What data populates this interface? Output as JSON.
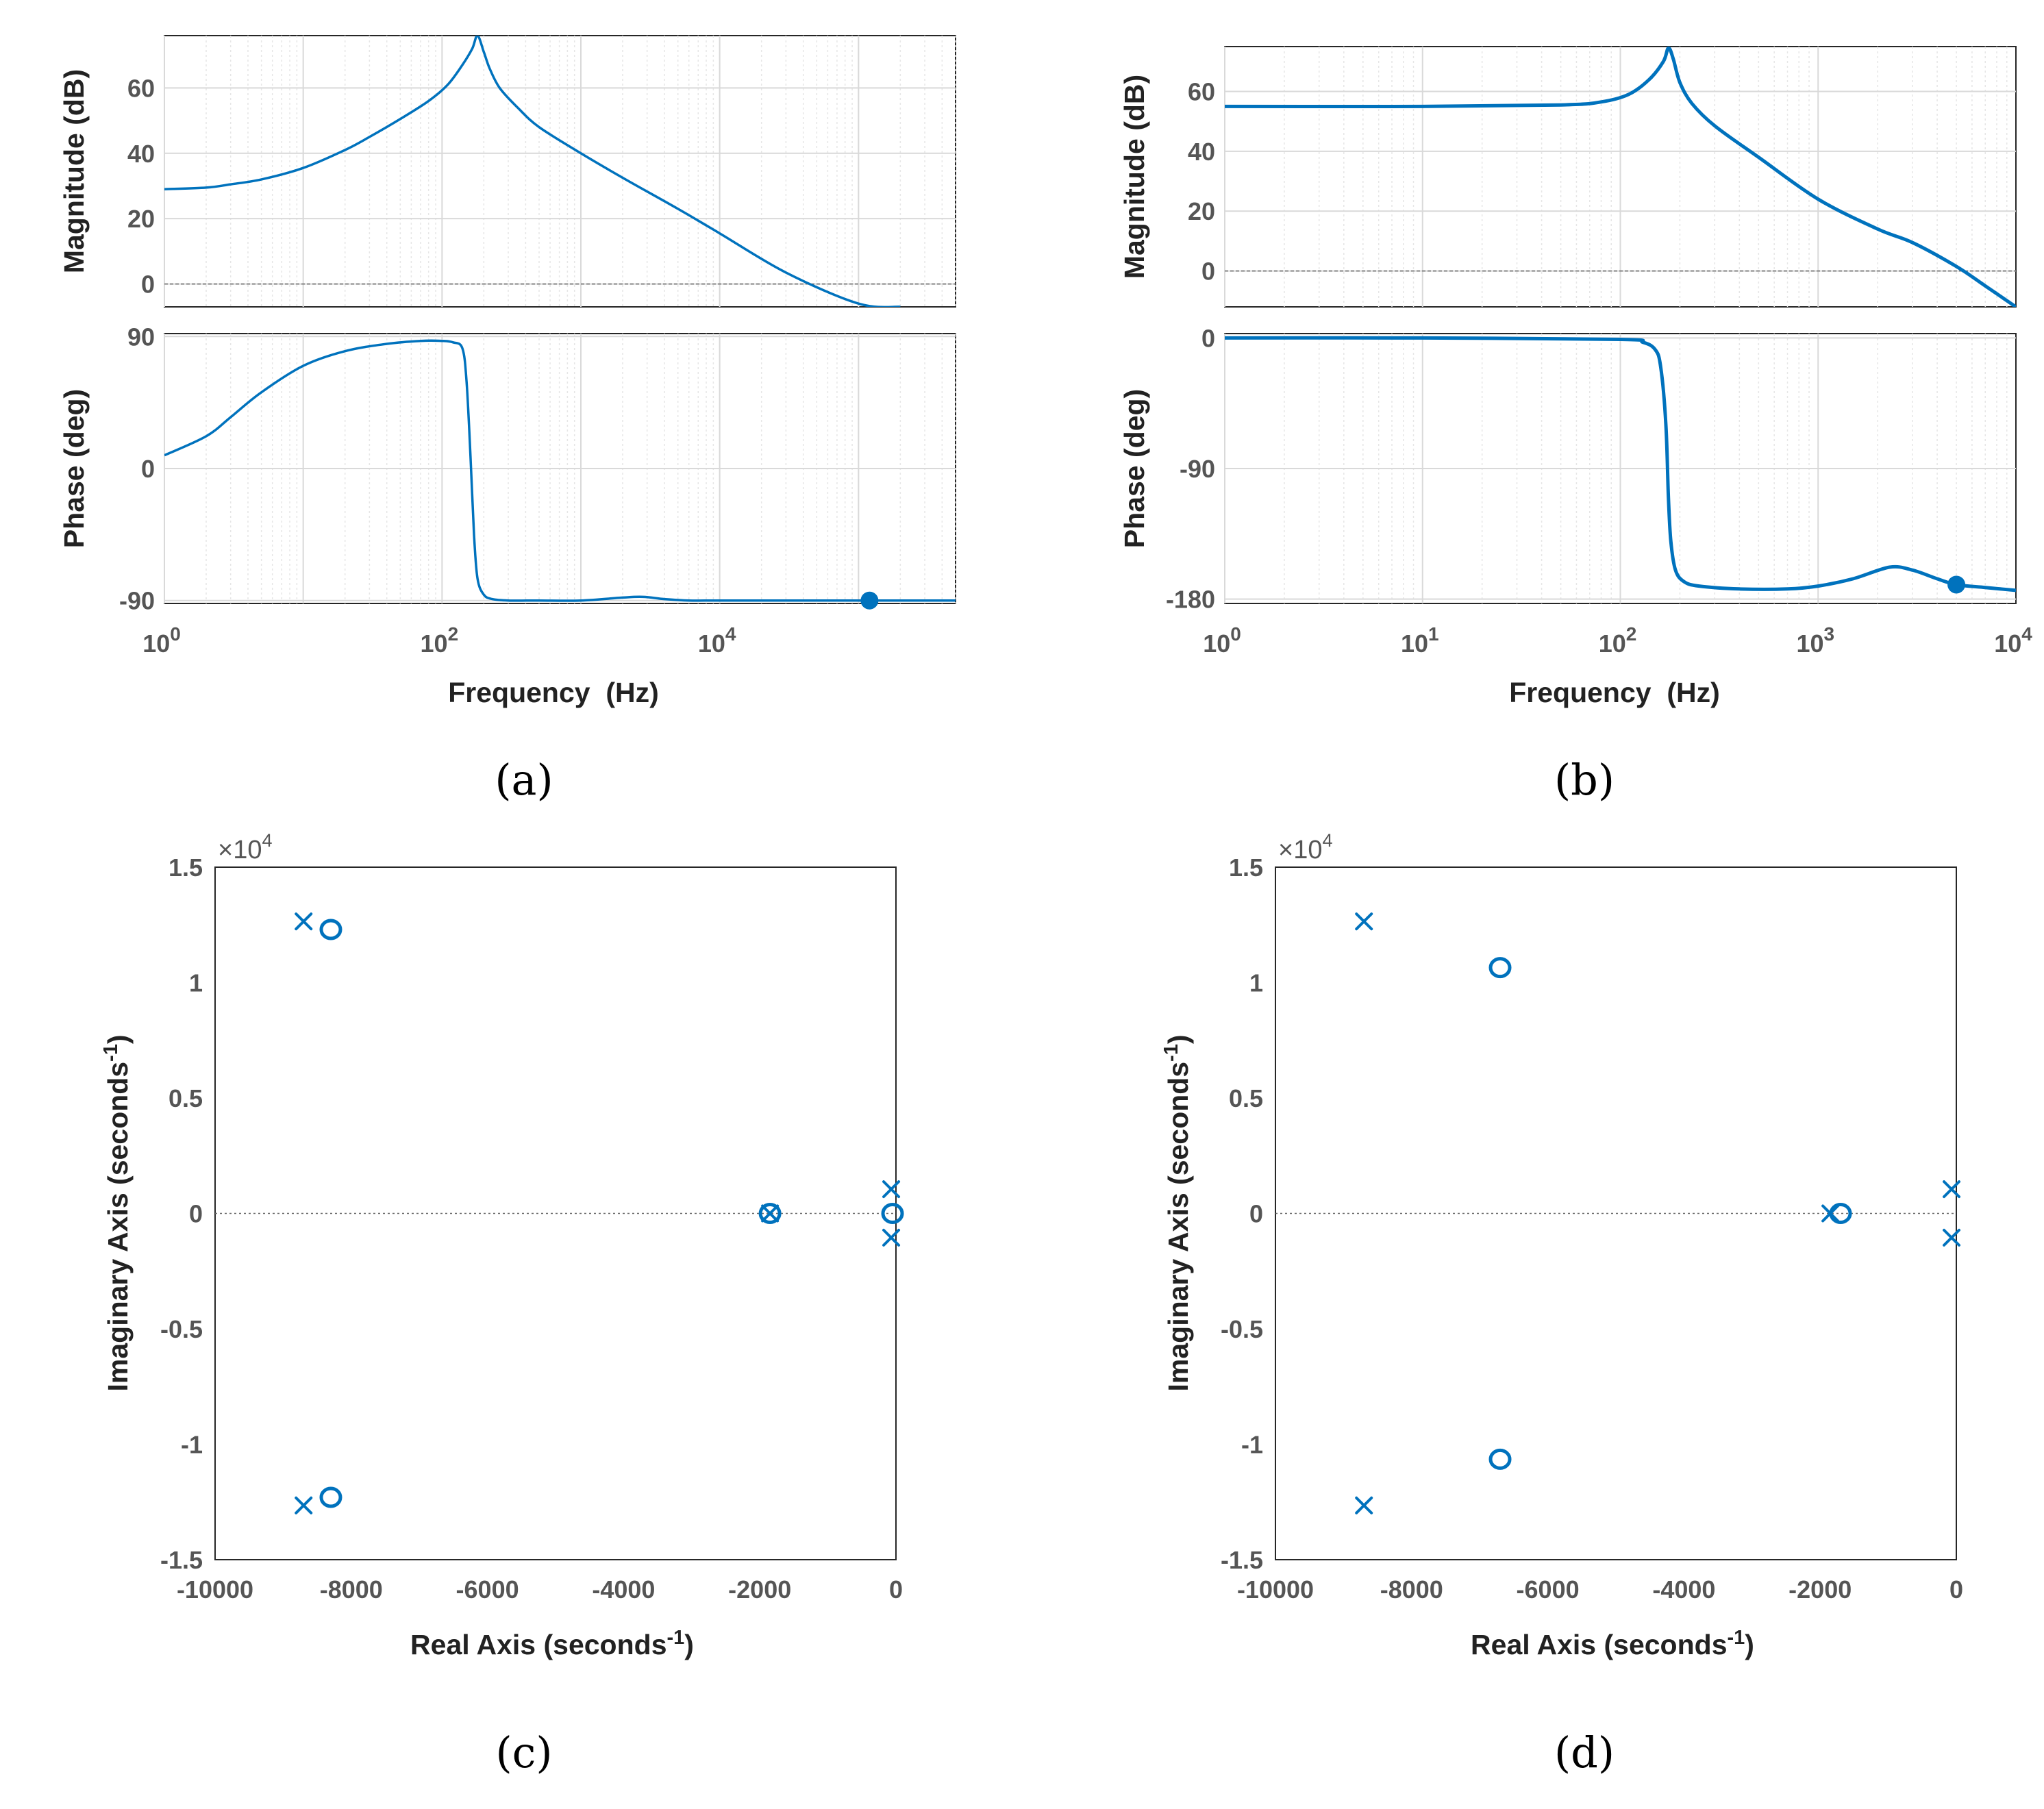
{
  "colors": {
    "line": "#0072BD",
    "grid_major": "#d9d9d9",
    "grid_minor": "#e6e6e6",
    "axis": "#262626",
    "tick_text": "#555555",
    "ref_line": "#666666"
  },
  "chart_data": [
    {
      "id": "a",
      "type": "line",
      "subtype": "bode",
      "caption": "(a)",
      "xlabel": "Frequency  (Hz)",
      "xscale": "log",
      "xlim": [
        1,
        500000
      ],
      "xticks": [
        {
          "value": 1,
          "base": "10",
          "exp": "0"
        },
        {
          "value": 100,
          "base": "10",
          "exp": "2"
        },
        {
          "value": 10000,
          "base": "10",
          "exp": "4"
        }
      ],
      "magnitude": {
        "ylabel": "Magnitude (dB)",
        "ylim": [
          -7,
          76
        ],
        "yticks": [
          0,
          20,
          40,
          60
        ],
        "ref_line": 0,
        "x": [
          1,
          2,
          3,
          5,
          10,
          20,
          30,
          50,
          80,
          110,
          140,
          165,
          180,
          200,
          220,
          260,
          350,
          500,
          1000,
          2000,
          5000,
          10000,
          30000,
          100000,
          200000
        ],
        "y": [
          29,
          29.5,
          30.5,
          32,
          35.5,
          41,
          45,
          50.5,
          56,
          61,
          67,
          72,
          76,
          71,
          66,
          60,
          54,
          48,
          40,
          32.5,
          23,
          15.5,
          3.5,
          -6,
          -7
        ]
      },
      "phase": {
        "ylabel": "Phase (deg)",
        "ylim": [
          -92,
          92
        ],
        "yticks": [
          -90,
          0,
          90
        ],
        "x": [
          1,
          2,
          3,
          5,
          10,
          20,
          40,
          70,
          100,
          120,
          140,
          150,
          160,
          170,
          180,
          200,
          230,
          300,
          500,
          1000,
          2000,
          2800,
          4000,
          6000,
          10000,
          30000,
          100000,
          500000
        ],
        "y": [
          9,
          22,
          35,
          52,
          70,
          80,
          85,
          87,
          87,
          86,
          82,
          60,
          10,
          -45,
          -75,
          -86,
          -89,
          -90,
          -90,
          -90,
          -88,
          -87.5,
          -89,
          -90,
          -90,
          -90,
          -90,
          -90
        ]
      },
      "marker_point": {
        "x": 120000,
        "phase": -90
      }
    },
    {
      "id": "b",
      "type": "line",
      "subtype": "bode",
      "caption": "(b)",
      "xlabel": "Frequency  (Hz)",
      "xscale": "log",
      "xlim": [
        1,
        10000
      ],
      "xticks": [
        {
          "value": 1,
          "base": "10",
          "exp": "0"
        },
        {
          "value": 10,
          "base": "10",
          "exp": "1"
        },
        {
          "value": 100,
          "base": "10",
          "exp": "2"
        },
        {
          "value": 1000,
          "base": "10",
          "exp": "3"
        },
        {
          "value": 10000,
          "base": "10",
          "exp": "4"
        }
      ],
      "magnitude": {
        "ylabel": "Magnitude (dB)",
        "ylim": [
          -12,
          75
        ],
        "yticks": [
          0,
          20,
          40,
          60
        ],
        "ref_line": 0,
        "x": [
          1,
          10,
          50,
          80,
          110,
          140,
          165,
          175,
          185,
          200,
          230,
          300,
          500,
          1000,
          2000,
          3000,
          5000,
          7000,
          10000
        ],
        "y": [
          55,
          55,
          55.5,
          56.5,
          59,
          64,
          70,
          74.5,
          71,
          63,
          56,
          48.5,
          38,
          24,
          14,
          9.5,
          1.5,
          -5,
          -12
        ]
      },
      "phase": {
        "ylabel": "Phase (deg)",
        "ylim": [
          -183,
          3
        ],
        "yticks": [
          -180,
          -90,
          0
        ],
        "x": [
          1,
          10,
          100,
          130,
          150,
          160,
          170,
          175,
          180,
          190,
          210,
          250,
          400,
          700,
          1000,
          1500,
          2300,
          3000,
          4000,
          5000,
          7000,
          10000
        ],
        "y": [
          0,
          0,
          -1,
          -3,
          -8,
          -20,
          -60,
          -110,
          -140,
          -160,
          -168,
          -171,
          -173,
          -173,
          -171,
          -166,
          -158,
          -160,
          -166,
          -170,
          -172,
          -174
        ]
      },
      "marker_point": {
        "x": 5000,
        "phase": -170
      }
    },
    {
      "id": "c",
      "type": "scatter",
      "subtype": "pole-zero map",
      "caption": "(c)",
      "xlabel": "Real Axis (seconds",
      "ylabel": "Imaginary Axis (seconds",
      "unit_exp": "-1",
      "xlim": [
        -10000,
        0
      ],
      "ylim": [
        -1.5,
        1.5
      ],
      "xticks": [
        "-10000",
        "-8000",
        "-6000",
        "-4000",
        "-2000",
        "0"
      ],
      "yticks": [
        "-1.5",
        "-1",
        "-0.5",
        "0",
        "0.5",
        "1",
        "1.5"
      ],
      "y_multiplier": {
        "base": "×10",
        "exp": "4"
      },
      "poles": [
        {
          "re": -8700,
          "im": 1.265
        },
        {
          "re": -8700,
          "im": -1.265
        },
        {
          "re": -1850,
          "im": 0
        },
        {
          "re": -70,
          "im": 0.105
        },
        {
          "re": -70,
          "im": -0.105
        }
      ],
      "zeros": [
        {
          "re": -8300,
          "im": 1.23
        },
        {
          "re": -8300,
          "im": -1.23
        },
        {
          "re": -1850,
          "im": 0
        },
        {
          "re": -50,
          "im": 0
        }
      ]
    },
    {
      "id": "d",
      "type": "scatter",
      "subtype": "pole-zero map",
      "caption": "(d)",
      "xlabel": "Real Axis (seconds",
      "ylabel": "Imaginary Axis (seconds",
      "unit_exp": "-1",
      "xlim": [
        -10000,
        0
      ],
      "ylim": [
        -1.5,
        1.5
      ],
      "xticks": [
        "-10000",
        "-8000",
        "-6000",
        "-4000",
        "-2000",
        "0"
      ],
      "yticks": [
        "-1.5",
        "-1",
        "-0.5",
        "0",
        "0.5",
        "1",
        "1.5"
      ],
      "y_multiplier": {
        "base": "×10",
        "exp": "4"
      },
      "poles": [
        {
          "re": -8700,
          "im": 1.265
        },
        {
          "re": -8700,
          "im": -1.265
        },
        {
          "re": -1850,
          "im": 0
        },
        {
          "re": -70,
          "im": 0.105
        },
        {
          "re": -70,
          "im": -0.105
        }
      ],
      "zeros": [
        {
          "re": -6700,
          "im": 1.065
        },
        {
          "re": -6700,
          "im": -1.065
        },
        {
          "re": -1700,
          "im": 0
        }
      ]
    }
  ]
}
